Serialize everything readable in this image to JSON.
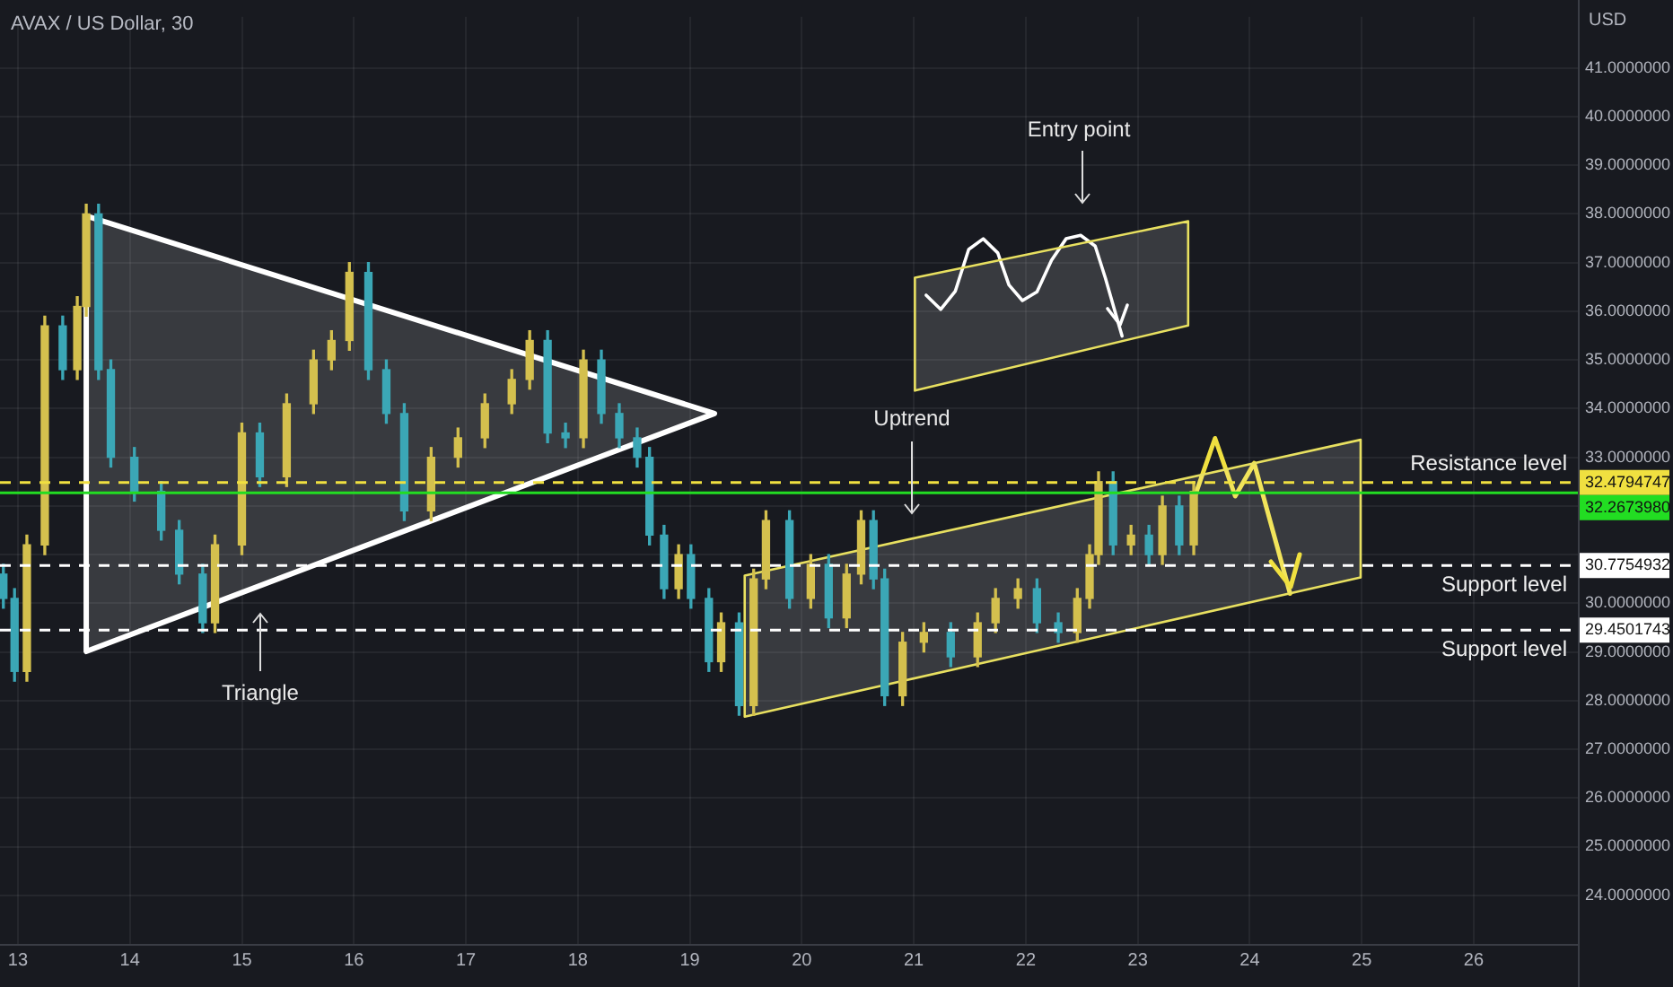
{
  "chart_data": {
    "type": "candlestick",
    "title": "AVAX / US Dollar, 30",
    "ylabel": "USD",
    "x": [
      12.87,
      12.97,
      13.08,
      13.24,
      13.4,
      13.53,
      13.61,
      13.72,
      13.83,
      14.04,
      14.28,
      14.44,
      14.65,
      14.76,
      15.0,
      15.16,
      15.4,
      15.64,
      15.8,
      15.96,
      16.13,
      16.29,
      16.45,
      16.69,
      16.93,
      17.17,
      17.41,
      17.57,
      17.73,
      17.89,
      18.05,
      18.21,
      18.37,
      18.53,
      18.64,
      18.77,
      18.9,
      19.01,
      19.17,
      19.28,
      19.44,
      19.57,
      19.68,
      19.89,
      20.08,
      20.24,
      20.4,
      20.53,
      20.64,
      20.74,
      20.9,
      21.09,
      21.33,
      21.57,
      21.73,
      21.93,
      22.1,
      22.29,
      22.46,
      22.57,
      22.65,
      22.78,
      22.94,
      23.1,
      23.22,
      23.37,
      23.5
    ],
    "ohlc": [
      [
        30.6,
        30.8,
        29.9,
        30.1
      ],
      [
        30.1,
        30.3,
        28.4,
        28.6
      ],
      [
        28.6,
        31.4,
        28.4,
        31.2
      ],
      [
        31.2,
        35.9,
        31.0,
        35.7
      ],
      [
        35.7,
        35.9,
        34.6,
        34.8
      ],
      [
        34.8,
        36.3,
        34.6,
        36.1
      ],
      [
        36.1,
        38.2,
        35.9,
        38.0
      ],
      [
        38.0,
        38.2,
        34.6,
        34.8
      ],
      [
        34.8,
        35.0,
        32.8,
        33.0
      ],
      [
        33.0,
        33.2,
        32.1,
        32.3
      ],
      [
        32.3,
        32.5,
        31.3,
        31.5
      ],
      [
        31.5,
        31.7,
        30.4,
        30.6
      ],
      [
        30.6,
        30.8,
        29.4,
        29.6
      ],
      [
        29.6,
        31.4,
        29.4,
        31.2
      ],
      [
        31.2,
        33.7,
        31.0,
        33.5
      ],
      [
        33.5,
        33.7,
        32.4,
        32.6
      ],
      [
        32.6,
        34.3,
        32.4,
        34.1
      ],
      [
        34.1,
        35.2,
        33.9,
        35.0
      ],
      [
        35.0,
        35.6,
        34.8,
        35.4
      ],
      [
        35.4,
        37.0,
        35.2,
        36.8
      ],
      [
        36.8,
        37.0,
        34.6,
        34.8
      ],
      [
        34.8,
        35.0,
        33.7,
        33.9
      ],
      [
        33.9,
        34.1,
        31.7,
        31.9
      ],
      [
        31.9,
        33.2,
        31.7,
        33.0
      ],
      [
        33.0,
        33.6,
        32.8,
        33.4
      ],
      [
        33.4,
        34.3,
        33.2,
        34.1
      ],
      [
        34.1,
        34.8,
        33.9,
        34.6
      ],
      [
        34.6,
        35.6,
        34.4,
        35.4
      ],
      [
        35.4,
        35.6,
        33.3,
        33.5
      ],
      [
        33.5,
        33.7,
        33.2,
        33.4
      ],
      [
        33.4,
        35.2,
        33.2,
        35.0
      ],
      [
        35.0,
        35.2,
        33.7,
        33.9
      ],
      [
        33.9,
        34.1,
        33.2,
        33.4
      ],
      [
        33.4,
        33.6,
        32.8,
        33.0
      ],
      [
        33.0,
        33.2,
        31.2,
        31.4
      ],
      [
        31.4,
        31.6,
        30.1,
        30.3
      ],
      [
        30.3,
        31.2,
        30.1,
        31.0
      ],
      [
        31.0,
        31.2,
        29.9,
        30.1
      ],
      [
        30.1,
        30.3,
        28.6,
        28.8
      ],
      [
        28.8,
        29.8,
        28.6,
        29.6
      ],
      [
        29.6,
        29.8,
        27.7,
        27.9
      ],
      [
        27.9,
        30.7,
        27.7,
        30.5
      ],
      [
        30.5,
        31.9,
        30.3,
        31.7
      ],
      [
        31.7,
        31.9,
        29.9,
        30.1
      ],
      [
        30.1,
        31.0,
        29.9,
        30.8
      ],
      [
        30.8,
        31.0,
        29.5,
        29.7
      ],
      [
        29.7,
        30.8,
        29.5,
        30.6
      ],
      [
        30.6,
        31.9,
        30.4,
        31.7
      ],
      [
        31.7,
        31.9,
        30.3,
        30.5
      ],
      [
        30.5,
        30.7,
        27.9,
        28.1
      ],
      [
        28.1,
        29.4,
        27.9,
        29.2
      ],
      [
        29.2,
        29.6,
        29.0,
        29.4
      ],
      [
        29.4,
        29.6,
        28.7,
        28.9
      ],
      [
        28.9,
        29.8,
        28.7,
        29.6
      ],
      [
        29.6,
        30.3,
        29.4,
        30.1
      ],
      [
        30.1,
        30.5,
        29.9,
        30.3
      ],
      [
        30.3,
        30.5,
        29.4,
        29.6
      ],
      [
        29.6,
        29.8,
        29.2,
        29.4
      ],
      [
        29.4,
        30.3,
        29.2,
        30.1
      ],
      [
        30.1,
        31.2,
        29.9,
        31.0
      ],
      [
        31.0,
        32.7,
        30.8,
        32.5
      ],
      [
        32.5,
        32.7,
        31.0,
        31.2
      ],
      [
        31.2,
        31.6,
        31.0,
        31.4
      ],
      [
        31.4,
        31.6,
        30.8,
        31.0
      ],
      [
        31.0,
        32.2,
        30.8,
        32.0
      ],
      [
        32.0,
        32.2,
        31.0,
        31.2
      ],
      [
        31.2,
        32.5,
        31.0,
        32.3
      ]
    ],
    "colors": [
      "#3ba7b6",
      "#3ba7b6",
      "#d4c04e",
      "#d4c04e",
      "#3ba7b6",
      "#d4c04e",
      "#d4c04e",
      "#3ba7b6",
      "#3ba7b6",
      "#3ba7b6",
      "#3ba7b6",
      "#3ba7b6",
      "#3ba7b6",
      "#d4c04e",
      "#d4c04e",
      "#3ba7b6",
      "#d4c04e",
      "#d4c04e",
      "#d4c04e",
      "#d4c04e",
      "#3ba7b6",
      "#3ba7b6",
      "#3ba7b6",
      "#d4c04e",
      "#d4c04e",
      "#d4c04e",
      "#d4c04e",
      "#d4c04e",
      "#3ba7b6",
      "#3ba7b6",
      "#d4c04e",
      "#3ba7b6",
      "#3ba7b6",
      "#3ba7b6",
      "#3ba7b6",
      "#3ba7b6",
      "#d4c04e",
      "#3ba7b6",
      "#3ba7b6",
      "#d4c04e",
      "#3ba7b6",
      "#d4c04e",
      "#d4c04e",
      "#3ba7b6",
      "#d4c04e",
      "#3ba7b6",
      "#d4c04e",
      "#d4c04e",
      "#3ba7b6",
      "#3ba7b6",
      "#d4c04e",
      "#d4c04e",
      "#3ba7b6",
      "#d4c04e",
      "#d4c04e",
      "#d4c04e",
      "#3ba7b6",
      "#3ba7b6",
      "#d4c04e",
      "#d4c04e",
      "#d4c04e",
      "#3ba7b6",
      "#d4c04e",
      "#3ba7b6",
      "#d4c04e",
      "#3ba7b6",
      "#d4c04e"
    ],
    "series": [
      {
        "type": "area",
        "color": "#ffffff",
        "x": [
          13.61,
          19.22,
          13.61,
          13.61
        ],
        "values": [
          37.96,
          33.9,
          29.01,
          37.96
        ]
      },
      {
        "type": "area",
        "color": "#e8e060",
        "x": [
          19.49,
          24.99,
          24.99,
          19.49,
          19.49
        ],
        "values": [
          30.57,
          33.36,
          30.53,
          27.67,
          30.57
        ]
      },
      {
        "type": "area",
        "color": "#e8e060",
        "x": [
          21.01,
          23.45,
          23.45,
          21.01,
          21.01
        ],
        "values": [
          36.69,
          37.85,
          35.71,
          34.37,
          36.69
        ]
      },
      {
        "type": "line",
        "color": "#ffffff",
        "x": [
          21.11,
          21.24,
          21.37,
          21.49,
          21.62,
          21.75,
          21.85,
          21.97,
          22.1,
          22.23,
          22.36,
          22.49,
          22.62,
          22.71,
          22.81,
          22.86
        ],
        "values": [
          36.33,
          36.04,
          36.41,
          37.27,
          37.49,
          37.2,
          36.54,
          36.22,
          36.4,
          37.05,
          37.49,
          37.56,
          37.34,
          36.69,
          35.89,
          35.49
        ]
      },
      {
        "type": "line",
        "color": "#f0e040",
        "x": [
          23.51,
          23.69,
          23.87,
          24.04,
          24.36
        ],
        "values": [
          32.2,
          33.39,
          32.2,
          32.88,
          30.2
        ]
      }
    ],
    "xlim": [
      12.84,
      26.93
    ],
    "xticks": [
      13,
      14,
      15,
      16,
      17,
      18,
      19,
      20,
      21,
      22,
      23,
      24,
      25,
      26
    ],
    "ylim": [
      23,
      42.05
    ],
    "yticks": [
      {
        "value": 24,
        "label": "24.0000000"
      },
      {
        "value": 25,
        "label": "25.0000000"
      },
      {
        "value": 26,
        "label": "26.0000000"
      },
      {
        "value": 27,
        "label": "27.0000000"
      },
      {
        "value": 28,
        "label": "28.0000000"
      },
      {
        "value": 29,
        "label": "29.0000000"
      },
      {
        "value": 30,
        "label": "30.0000000"
      },
      {
        "value": 31,
        "label": null
      },
      {
        "value": 32,
        "label": null
      },
      {
        "value": 33,
        "label": "33.0000000"
      },
      {
        "value": 34,
        "label": "34.0000000"
      },
      {
        "value": 35,
        "label": "35.0000000"
      },
      {
        "value": 36,
        "label": "36.0000000"
      },
      {
        "value": 37,
        "label": "37.0000000"
      },
      {
        "value": 38,
        "label": "38.0000000"
      },
      {
        "value": 39,
        "label": "39.0000000"
      },
      {
        "value": 40,
        "label": "40.0000000"
      },
      {
        "value": 41,
        "label": "41.0000000"
      }
    ],
    "ref_lines": [
      {
        "axis": "y",
        "value": 32.4794747,
        "label": "Resistance level",
        "color": "#f0e040",
        "line_style": "dashed"
      },
      {
        "axis": "y",
        "value": 32.267398,
        "label": null,
        "color": "#22dd22",
        "line_style": "solid"
      },
      {
        "axis": "y",
        "value": 30.7754932,
        "label": "Support level",
        "color": "#ffffff",
        "line_style": "dashed"
      },
      {
        "axis": "y",
        "value": 29.4501743,
        "label": "Support level",
        "color": "#ffffff",
        "line_style": "dashed"
      }
    ],
    "annotations": [
      "Triangle",
      "Uptrend",
      "Entry point",
      "32.4794747",
      "32.2673980",
      "30.7754932",
      "29.4501743"
    ],
    "grid": true,
    "legend": false
  }
}
